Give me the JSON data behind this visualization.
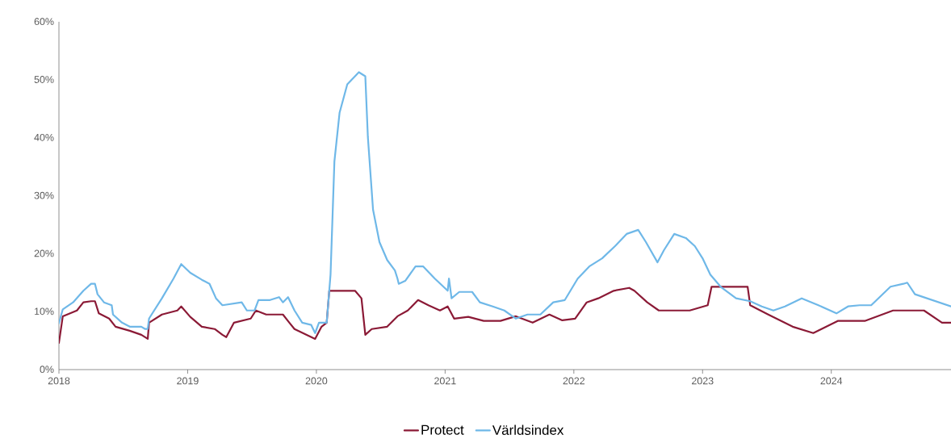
{
  "chart_data": {
    "type": "line",
    "xlim": [
      2018,
      2024.93
    ],
    "ylim": [
      0,
      60
    ],
    "xticks": [
      2018,
      2019,
      2020,
      2021,
      2022,
      2023,
      2024
    ],
    "yticks": [
      {
        "value": 0,
        "label": "0%"
      },
      {
        "value": 10,
        "label": "10%"
      },
      {
        "value": 20,
        "label": "20%"
      },
      {
        "value": 30,
        "label": "30%"
      },
      {
        "value": 40,
        "label": "40%"
      },
      {
        "value": 50,
        "label": "50%"
      },
      {
        "value": 60,
        "label": "60%"
      }
    ],
    "legend": "bottom",
    "series": [
      {
        "name": "Protect",
        "color": "#8b1a36",
        "x": [
          2018.0,
          2018.03,
          2018.14,
          2018.19,
          2018.25,
          2018.28,
          2018.31,
          2018.39,
          2018.44,
          2018.55,
          2018.64,
          2018.69,
          2018.7,
          2018.8,
          2018.92,
          2018.95,
          2019.02,
          2019.11,
          2019.21,
          2019.27,
          2019.3,
          2019.36,
          2019.49,
          2019.53,
          2019.61,
          2019.74,
          2019.79,
          2019.83,
          2019.99,
          2020.04,
          2020.08,
          2020.1,
          2020.3,
          2020.35,
          2020.38,
          2020.43,
          2020.55,
          2020.63,
          2020.71,
          2020.79,
          2020.87,
          2020.96,
          2021.02,
          2021.07,
          2021.18,
          2021.3,
          2021.43,
          2021.55,
          2021.68,
          2021.81,
          2021.91,
          2022.01,
          2022.1,
          2022.19,
          2022.31,
          2022.43,
          2022.47,
          2022.57,
          2022.66,
          2022.9,
          2023.04,
          2023.07,
          2023.35,
          2023.37,
          2023.51,
          2023.7,
          2023.86,
          2024.05,
          2024.26,
          2024.48,
          2024.72,
          2024.86,
          2024.93
        ],
        "values": [
          4.6,
          9.2,
          10.2,
          11.6,
          11.8,
          11.8,
          9.7,
          8.8,
          7.4,
          6.7,
          6.0,
          5.3,
          8.1,
          9.5,
          10.2,
          10.9,
          9.1,
          7.4,
          7.0,
          6.0,
          5.6,
          8.1,
          8.8,
          10.2,
          9.5,
          9.5,
          8.1,
          7.0,
          5.3,
          7.4,
          8.1,
          13.6,
          13.6,
          12.3,
          6.0,
          7.0,
          7.4,
          9.2,
          10.2,
          12.0,
          11.1,
          10.2,
          10.9,
          8.8,
          9.1,
          8.4,
          8.4,
          9.2,
          8.1,
          9.5,
          8.5,
          8.8,
          11.6,
          12.3,
          13.6,
          14.1,
          13.6,
          11.6,
          10.2,
          10.2,
          11.1,
          14.3,
          14.3,
          11.1,
          9.5,
          7.4,
          6.3,
          8.4,
          8.4,
          10.2,
          10.2,
          8.1,
          8.1
        ]
      },
      {
        "name": "Världsindex",
        "color": "#6fb8e8",
        "x": [
          2018.0,
          2018.03,
          2018.11,
          2018.19,
          2018.25,
          2018.28,
          2018.3,
          2018.35,
          2018.41,
          2018.42,
          2018.49,
          2018.55,
          2018.64,
          2018.67,
          2018.69,
          2018.7,
          2018.8,
          2018.89,
          2018.95,
          2019.02,
          2019.11,
          2019.17,
          2019.22,
          2019.27,
          2019.42,
          2019.46,
          2019.52,
          2019.55,
          2019.64,
          2019.71,
          2019.74,
          2019.78,
          2019.83,
          2019.89,
          2019.96,
          2019.99,
          2020.02,
          2020.08,
          2020.11,
          2020.14,
          2020.18,
          2020.24,
          2020.33,
          2020.38,
          2020.4,
          2020.44,
          2020.49,
          2020.55,
          2020.61,
          2020.63,
          2020.64,
          2020.69,
          2020.77,
          2020.83,
          2020.92,
          2021.02,
          2021.03,
          2021.05,
          2021.11,
          2021.21,
          2021.27,
          2021.37,
          2021.46,
          2021.55,
          2021.64,
          2021.74,
          2021.84,
          2021.93,
          2022.03,
          2022.12,
          2022.22,
          2022.32,
          2022.41,
          2022.5,
          2022.56,
          2022.65,
          2022.7,
          2022.78,
          2022.87,
          2022.94,
          2023.0,
          2023.06,
          2023.14,
          2023.26,
          2023.37,
          2023.46,
          2023.55,
          2023.64,
          2023.77,
          2023.9,
          2024.04,
          2024.13,
          2024.22,
          2024.31,
          2024.46,
          2024.56,
          2024.59,
          2024.65,
          2024.93
        ],
        "values": [
          8.0,
          10.4,
          11.6,
          13.6,
          14.8,
          14.8,
          13.0,
          11.6,
          11.1,
          9.5,
          8.1,
          7.4,
          7.4,
          7.0,
          7.0,
          8.8,
          12.3,
          15.7,
          18.2,
          16.7,
          15.5,
          14.8,
          12.3,
          11.1,
          11.6,
          10.2,
          10.2,
          12.0,
          12.0,
          12.5,
          11.6,
          12.5,
          10.2,
          8.1,
          7.7,
          6.3,
          8.1,
          8.1,
          16.4,
          35.9,
          44.3,
          49.2,
          51.3,
          50.6,
          40.1,
          27.6,
          22.0,
          18.9,
          17.1,
          15.7,
          14.8,
          15.3,
          17.8,
          17.8,
          15.7,
          13.6,
          15.7,
          12.3,
          13.4,
          13.4,
          11.6,
          10.9,
          10.2,
          8.8,
          9.5,
          9.5,
          11.6,
          12.0,
          15.7,
          17.8,
          19.2,
          21.3,
          23.4,
          24.1,
          22.0,
          18.5,
          20.6,
          23.4,
          22.7,
          21.3,
          19.2,
          16.4,
          14.3,
          12.3,
          11.8,
          10.9,
          10.2,
          10.9,
          12.3,
          11.1,
          9.7,
          10.9,
          11.1,
          11.1,
          14.3,
          14.8,
          15.0,
          13.0,
          10.9
        ]
      }
    ]
  }
}
